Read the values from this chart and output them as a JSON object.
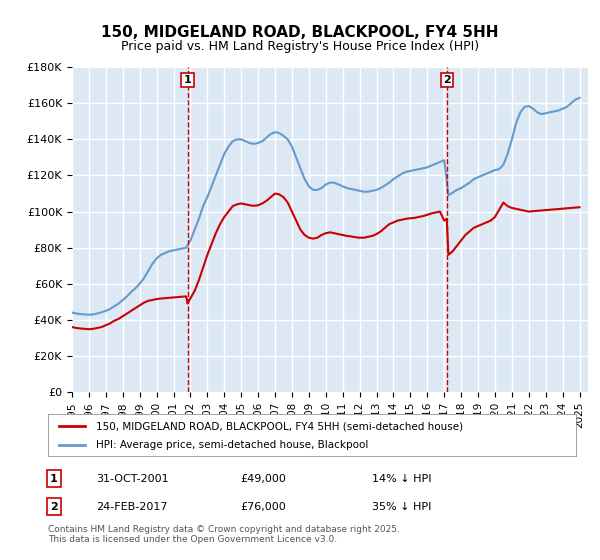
{
  "title": "150, MIDGELAND ROAD, BLACKPOOL, FY4 5HH",
  "subtitle": "Price paid vs. HM Land Registry's House Price Index (HPI)",
  "ylabel": "",
  "xlabel": "",
  "ylim": [
    0,
    180000
  ],
  "yticks": [
    0,
    20000,
    40000,
    60000,
    80000,
    100000,
    120000,
    140000,
    160000,
    180000
  ],
  "ytick_labels": [
    "£0",
    "£20K",
    "£40K",
    "£60K",
    "£80K",
    "£100K",
    "£120K",
    "£140K",
    "£160K",
    "£180K"
  ],
  "xmin": 1995.0,
  "xmax": 2025.5,
  "background_color": "#dce9f5",
  "plot_bg_color": "#dce9f5",
  "grid_color": "#ffffff",
  "vline1_x": 2001.83,
  "vline2_x": 2017.15,
  "marker1_label": "1",
  "marker2_label": "2",
  "sale1_date": "31-OCT-2001",
  "sale1_price": "£49,000",
  "sale1_hpi": "14% ↓ HPI",
  "sale2_date": "24-FEB-2017",
  "sale2_price": "£76,000",
  "sale2_hpi": "35% ↓ HPI",
  "legend_label_red": "150, MIDGELAND ROAD, BLACKPOOL, FY4 5HH (semi-detached house)",
  "legend_label_blue": "HPI: Average price, semi-detached house, Blackpool",
  "footer": "Contains HM Land Registry data © Crown copyright and database right 2025.\nThis data is licensed under the Open Government Licence v3.0.",
  "red_color": "#cc0000",
  "blue_color": "#6699cc",
  "hpi_years": [
    1995.0,
    1995.25,
    1995.5,
    1995.75,
    1996.0,
    1996.25,
    1996.5,
    1996.75,
    1997.0,
    1997.25,
    1997.5,
    1997.75,
    1998.0,
    1998.25,
    1998.5,
    1998.75,
    1999.0,
    1999.25,
    1999.5,
    1999.75,
    2000.0,
    2000.25,
    2000.5,
    2000.75,
    2001.0,
    2001.25,
    2001.5,
    2001.75,
    2002.0,
    2002.25,
    2002.5,
    2002.75,
    2003.0,
    2003.25,
    2003.5,
    2003.75,
    2004.0,
    2004.25,
    2004.5,
    2004.75,
    2005.0,
    2005.25,
    2005.5,
    2005.75,
    2006.0,
    2006.25,
    2006.5,
    2006.75,
    2007.0,
    2007.25,
    2007.5,
    2007.75,
    2008.0,
    2008.25,
    2008.5,
    2008.75,
    2009.0,
    2009.25,
    2009.5,
    2009.75,
    2010.0,
    2010.25,
    2010.5,
    2010.75,
    2011.0,
    2011.25,
    2011.5,
    2011.75,
    2012.0,
    2012.25,
    2012.5,
    2012.75,
    2013.0,
    2013.25,
    2013.5,
    2013.75,
    2014.0,
    2014.25,
    2014.5,
    2014.75,
    2015.0,
    2015.25,
    2015.5,
    2015.75,
    2016.0,
    2016.25,
    2016.5,
    2016.75,
    2017.0,
    2017.25,
    2017.5,
    2017.75,
    2018.0,
    2018.25,
    2018.5,
    2018.75,
    2019.0,
    2019.25,
    2019.5,
    2019.75,
    2020.0,
    2020.25,
    2020.5,
    2020.75,
    2021.0,
    2021.25,
    2021.5,
    2021.75,
    2022.0,
    2022.25,
    2022.5,
    2022.75,
    2023.0,
    2023.25,
    2023.5,
    2023.75,
    2024.0,
    2024.25,
    2024.5,
    2024.75,
    2025.0
  ],
  "hpi_values": [
    44000,
    43500,
    43200,
    43000,
    42800,
    43000,
    43500,
    44200,
    45000,
    46000,
    47500,
    49000,
    51000,
    53000,
    55500,
    57500,
    60000,
    63000,
    67000,
    71000,
    74000,
    76000,
    77000,
    78000,
    78500,
    79000,
    79500,
    80000,
    84000,
    90000,
    96000,
    103000,
    108000,
    114000,
    120000,
    126000,
    132000,
    136000,
    139000,
    140000,
    140000,
    139000,
    138000,
    137500,
    138000,
    139000,
    141000,
    143000,
    144000,
    143500,
    142000,
    140000,
    136000,
    130000,
    124000,
    118000,
    114000,
    112000,
    112000,
    113000,
    115000,
    116000,
    116000,
    115000,
    114000,
    113000,
    112500,
    112000,
    111500,
    111000,
    111000,
    111500,
    112000,
    113000,
    114500,
    116000,
    118000,
    119500,
    121000,
    122000,
    122500,
    123000,
    123500,
    124000,
    124500,
    125500,
    126500,
    127500,
    128500,
    109000,
    110500,
    112000,
    113000,
    114500,
    116000,
    118000,
    119000,
    120000,
    121000,
    122000,
    123000,
    123500,
    126000,
    132000,
    140000,
    149000,
    155000,
    158000,
    158500,
    157000,
    155000,
    154000,
    154500,
    155000,
    155500,
    156000,
    157000,
    158000,
    160000,
    162000,
    163000
  ],
  "red_years": [
    1995.0,
    1995.25,
    1995.5,
    1995.75,
    1996.0,
    1996.25,
    1996.5,
    1996.75,
    1997.0,
    1997.25,
    1997.5,
    1997.75,
    1998.0,
    1998.25,
    1998.5,
    1998.75,
    1999.0,
    1999.25,
    1999.5,
    1999.75,
    2000.0,
    2000.25,
    2000.5,
    2000.75,
    2001.0,
    2001.25,
    2001.5,
    2001.75,
    2001.83,
    2002.0,
    2002.25,
    2002.5,
    2002.75,
    2003.0,
    2003.25,
    2003.5,
    2003.75,
    2004.0,
    2004.25,
    2004.5,
    2004.75,
    2005.0,
    2005.25,
    2005.5,
    2005.75,
    2006.0,
    2006.25,
    2006.5,
    2006.75,
    2007.0,
    2007.25,
    2007.5,
    2007.75,
    2008.0,
    2008.25,
    2008.5,
    2008.75,
    2009.0,
    2009.25,
    2009.5,
    2009.75,
    2010.0,
    2010.25,
    2010.5,
    2010.75,
    2011.0,
    2011.25,
    2011.5,
    2011.75,
    2012.0,
    2012.25,
    2012.5,
    2012.75,
    2013.0,
    2013.25,
    2013.5,
    2013.75,
    2014.0,
    2014.25,
    2014.5,
    2014.75,
    2015.0,
    2015.25,
    2015.5,
    2015.75,
    2016.0,
    2016.25,
    2016.5,
    2016.75,
    2017.0,
    2017.15,
    2017.25,
    2017.5,
    2017.75,
    2018.0,
    2018.25,
    2018.5,
    2018.75,
    2019.0,
    2019.25,
    2019.5,
    2019.75,
    2020.0,
    2020.25,
    2020.5,
    2020.75,
    2021.0,
    2021.25,
    2021.5,
    2021.75,
    2022.0,
    2022.25,
    2022.5,
    2022.75,
    2023.0,
    2023.25,
    2023.5,
    2023.75,
    2024.0,
    2024.25,
    2024.5,
    2024.75,
    2025.0
  ],
  "red_values": [
    36000,
    35500,
    35200,
    35000,
    34800,
    35000,
    35500,
    36000,
    37000,
    38000,
    39500,
    40500,
    42000,
    43500,
    45000,
    46500,
    48000,
    49500,
    50500,
    51000,
    51500,
    51800,
    52000,
    52200,
    52400,
    52600,
    52800,
    53000,
    49000,
    52000,
    56000,
    62000,
    69000,
    76000,
    82000,
    88000,
    93000,
    97000,
    100000,
    103000,
    104000,
    104500,
    104000,
    103500,
    103200,
    103500,
    104500,
    106000,
    108000,
    110000,
    109500,
    108000,
    105000,
    100000,
    95000,
    90000,
    87000,
    85500,
    85000,
    85500,
    87000,
    88000,
    88500,
    88000,
    87500,
    87000,
    86500,
    86200,
    85800,
    85500,
    85500,
    86000,
    86500,
    87500,
    89000,
    91000,
    93000,
    94000,
    95000,
    95500,
    96000,
    96300,
    96500,
    97000,
    97500,
    98200,
    99000,
    99500,
    100000,
    95000,
    96000,
    76000,
    78000,
    81000,
    84000,
    87000,
    89000,
    91000,
    92000,
    93000,
    94000,
    95000,
    97000,
    101000,
    105000,
    103000,
    102000,
    101500,
    101000,
    100500,
    100000,
    100200,
    100400,
    100600,
    100800,
    101000,
    101200,
    101400,
    101600,
    101800,
    102000,
    102200,
    102400
  ]
}
